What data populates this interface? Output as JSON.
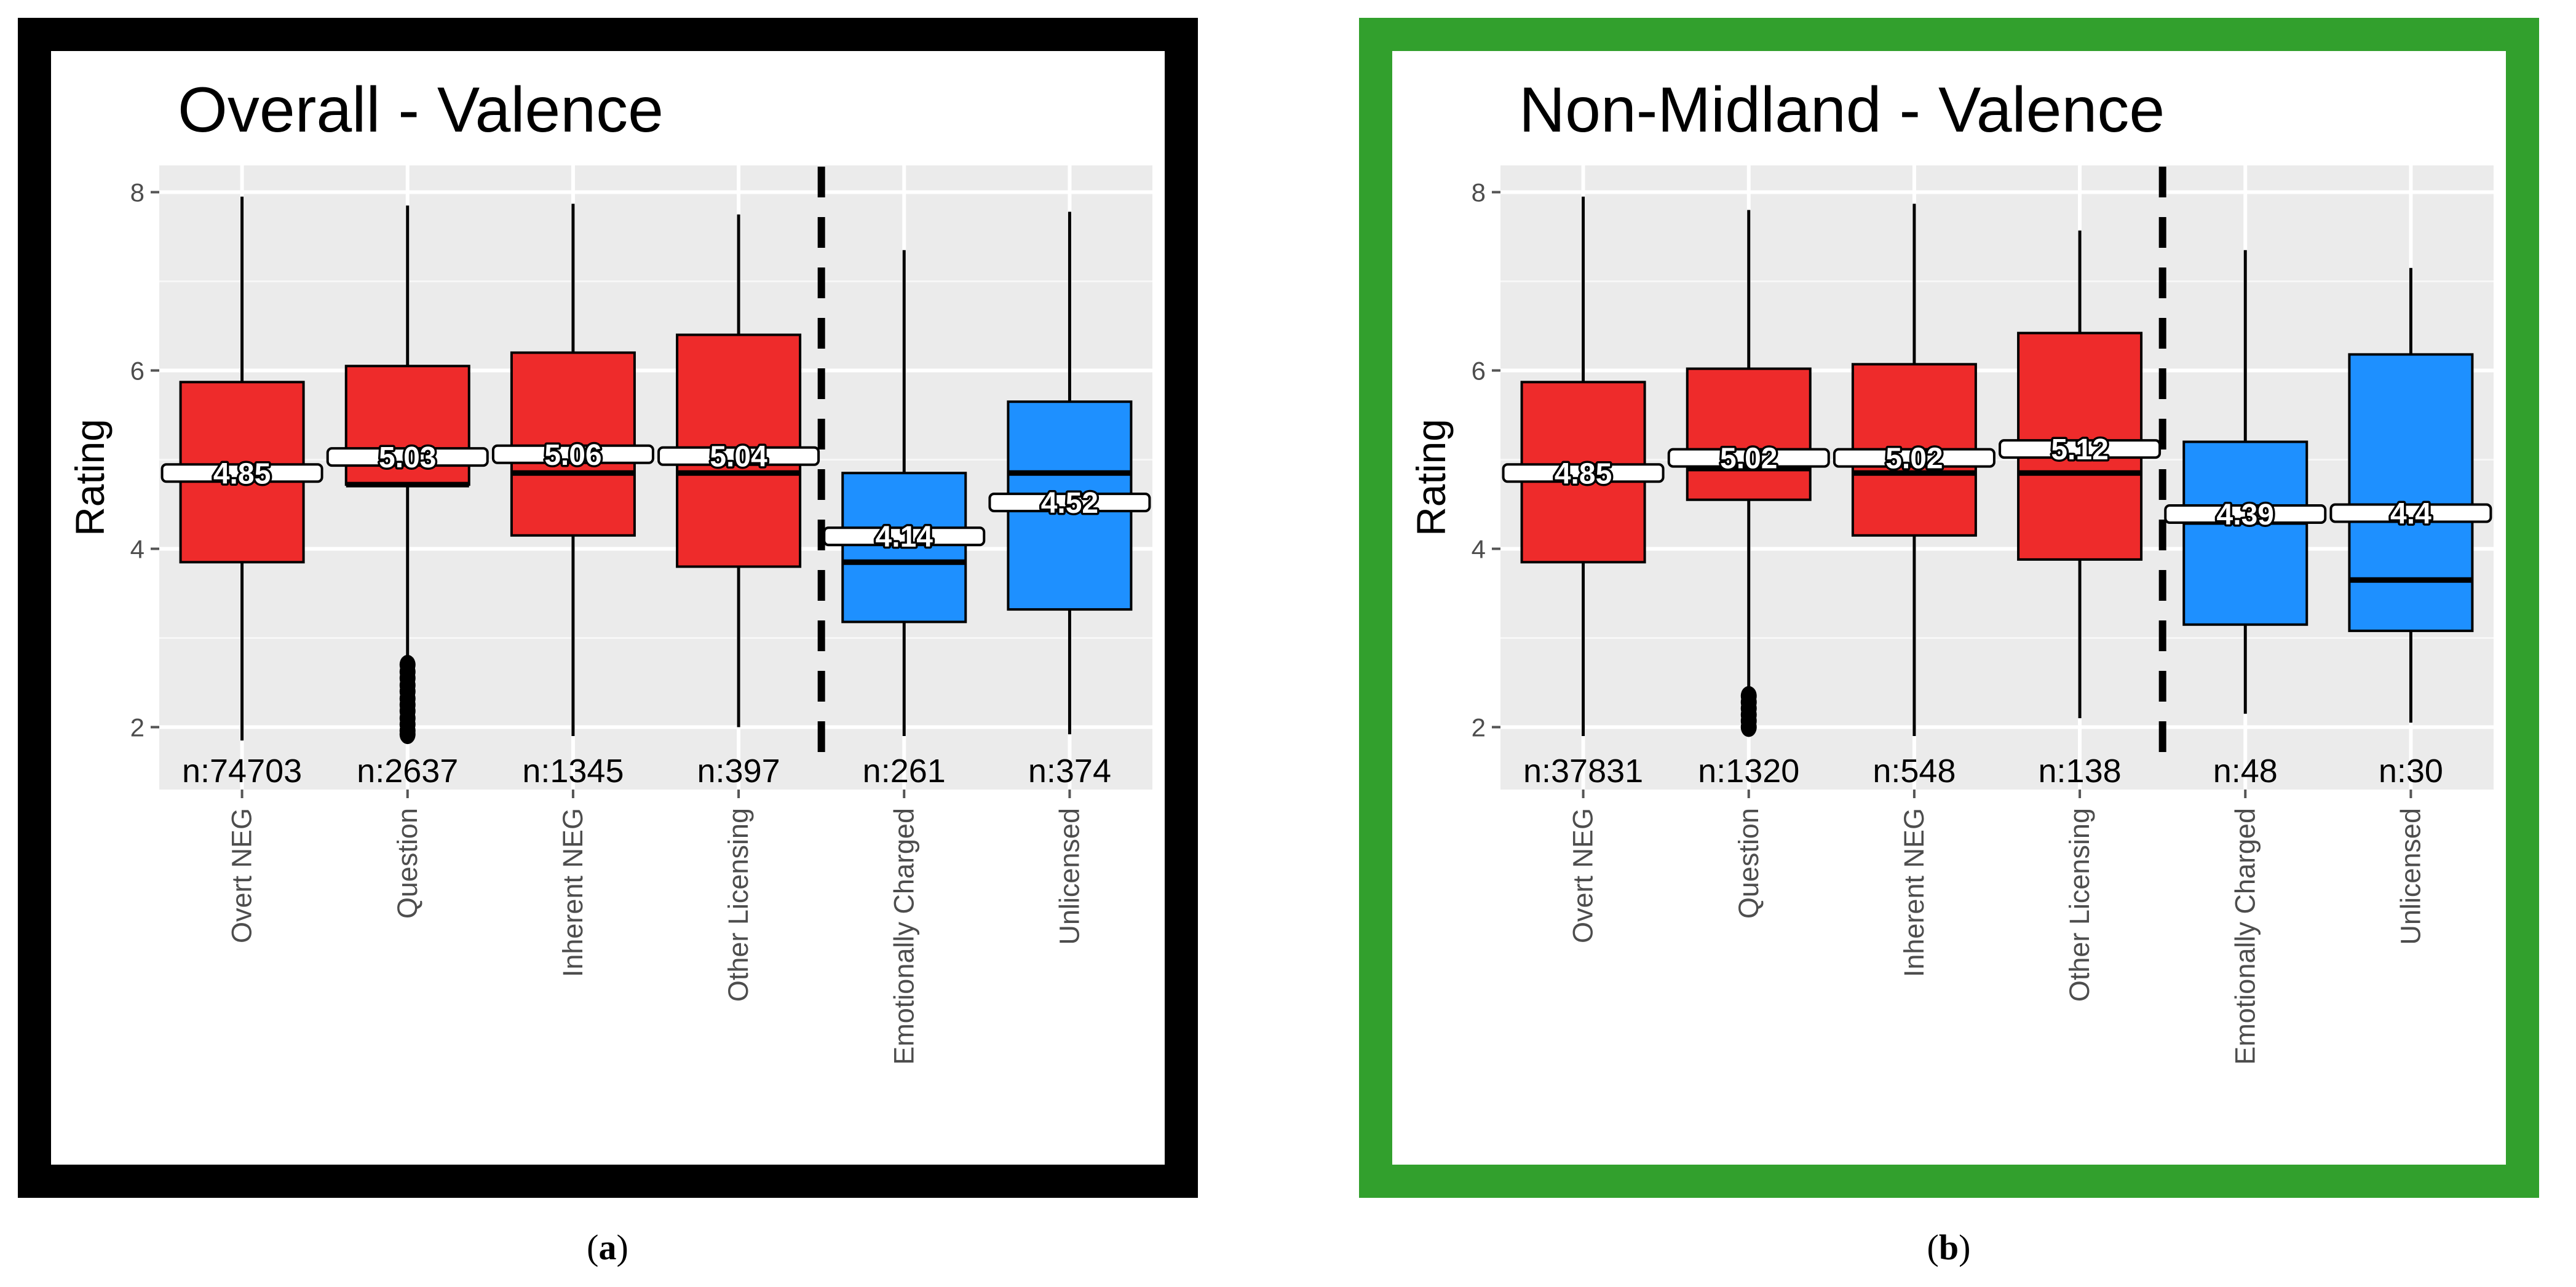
{
  "figure": {
    "subcaption_a": "a",
    "subcaption_b": "b"
  },
  "chart_data": [
    {
      "type": "boxplot",
      "title": "Overall - Valence",
      "ylabel": "Rating",
      "xlabel": "",
      "ylim": [
        1.3,
        8.3
      ],
      "yticks": [
        2,
        4,
        6,
        8
      ],
      "grid": true,
      "frame_color": "#000000",
      "divider_after_index": 3,
      "categories": [
        "Overt NEG",
        "Question",
        "Inherent NEG",
        "Other Licensing",
        "Emotionally Charged",
        "Unlicensed"
      ],
      "counts": [
        "n:74703",
        "n:2637",
        "n:1345",
        "n:397",
        "n:261",
        "n:374"
      ],
      "means": [
        4.85,
        5.03,
        5.06,
        5.04,
        4.14,
        4.52
      ],
      "mean_labels": [
        "4.85",
        "5.03",
        "5.06",
        "5.04",
        "4.14",
        "4.52"
      ],
      "boxes": [
        {
          "whisker_low": 1.85,
          "q1": 3.85,
          "median": 4.8,
          "q3": 5.87,
          "whisker_high": 7.95,
          "color": "#ee2b2b"
        },
        {
          "whisker_low": 2.72,
          "q1": 4.72,
          "median": 4.72,
          "q3": 6.05,
          "whisker_high": 7.85,
          "color": "#ee2b2b",
          "outliers": [
            2.7,
            2.62,
            2.55,
            2.47,
            2.4,
            2.32,
            2.25,
            2.18,
            2.1,
            2.03,
            1.96,
            1.92
          ]
        },
        {
          "whisker_low": 1.9,
          "q1": 4.15,
          "median": 4.85,
          "q3": 6.2,
          "whisker_high": 7.87,
          "color": "#ee2b2b"
        },
        {
          "whisker_low": 2.0,
          "q1": 3.8,
          "median": 4.85,
          "q3": 6.4,
          "whisker_high": 7.75,
          "color": "#ee2b2b"
        },
        {
          "whisker_low": 1.9,
          "q1": 3.18,
          "median": 3.85,
          "q3": 4.85,
          "whisker_high": 7.35,
          "color": "#1e90ff"
        },
        {
          "whisker_low": 1.92,
          "q1": 3.32,
          "median": 4.85,
          "q3": 5.65,
          "whisker_high": 7.78,
          "color": "#1e90ff"
        }
      ]
    },
    {
      "type": "boxplot",
      "title": "Non-Midland - Valence",
      "ylabel": "Rating",
      "xlabel": "",
      "ylim": [
        1.3,
        8.3
      ],
      "yticks": [
        2,
        4,
        6,
        8
      ],
      "grid": true,
      "frame_color": "#32a02d",
      "divider_after_index": 3,
      "categories": [
        "Overt NEG",
        "Question",
        "Inherent NEG",
        "Other Licensing",
        "Emotionally Charged",
        "Unlicensed"
      ],
      "counts": [
        "n:37831",
        "n:1320",
        "n:548",
        "n:138",
        "n:48",
        "n:30"
      ],
      "means": [
        4.85,
        5.02,
        5.02,
        5.12,
        4.39,
        4.4
      ],
      "mean_labels": [
        "4.85",
        "5.02",
        "5.02",
        "5.12",
        "4.39",
        "4.4"
      ],
      "boxes": [
        {
          "whisker_low": 1.9,
          "q1": 3.85,
          "median": 4.8,
          "q3": 5.87,
          "whisker_high": 7.95,
          "color": "#ee2b2b"
        },
        {
          "whisker_low": 2.4,
          "q1": 4.55,
          "median": 4.9,
          "q3": 6.02,
          "whisker_high": 7.8,
          "color": "#ee2b2b",
          "outliers": [
            2.35,
            2.28,
            2.21,
            2.14,
            2.07,
            2.0
          ]
        },
        {
          "whisker_low": 1.9,
          "q1": 4.15,
          "median": 4.85,
          "q3": 6.07,
          "whisker_high": 7.87,
          "color": "#ee2b2b"
        },
        {
          "whisker_low": 2.1,
          "q1": 3.88,
          "median": 4.85,
          "q3": 6.42,
          "whisker_high": 7.57,
          "color": "#ee2b2b"
        },
        {
          "whisker_low": 2.15,
          "q1": 3.15,
          "median": 4.3,
          "q3": 5.2,
          "whisker_high": 7.35,
          "color": "#1e90ff"
        },
        {
          "whisker_low": 2.05,
          "q1": 3.08,
          "median": 3.65,
          "q3": 6.18,
          "whisker_high": 7.15,
          "color": "#1e90ff"
        }
      ]
    }
  ]
}
